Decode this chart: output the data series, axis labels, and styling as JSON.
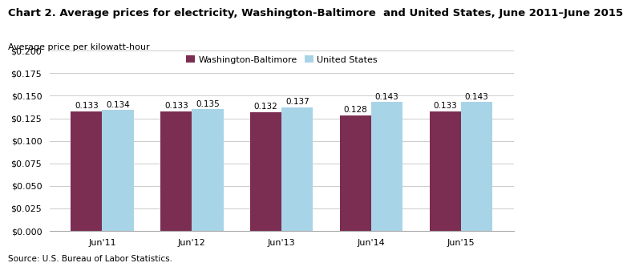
{
  "title": "Chart 2. Average prices for electricity, Washington-Baltimore  and United States, June 2011–June 2015",
  "ylabel": "Average price per kilowatt-hour",
  "source": "Source: U.S. Bureau of Labor Statistics.",
  "categories": [
    "Jun'11",
    "Jun'12",
    "Jun'13",
    "Jun'14",
    "Jun'15"
  ],
  "washington_baltimore": [
    0.133,
    0.133,
    0.132,
    0.128,
    0.133
  ],
  "united_states": [
    0.134,
    0.135,
    0.137,
    0.143,
    0.143
  ],
  "wb_color": "#7B2D52",
  "us_color": "#A8D4E8",
  "wb_label": "Washington-Baltimore",
  "us_label": "United States",
  "ylim": [
    0.0,
    0.2
  ],
  "yticks": [
    0.0,
    0.025,
    0.05,
    0.075,
    0.1,
    0.125,
    0.15,
    0.175,
    0.2
  ],
  "bar_width": 0.35,
  "title_fontsize": 9.5,
  "label_fontsize": 8,
  "tick_fontsize": 8,
  "annotation_fontsize": 7.5,
  "legend_fontsize": 8,
  "background_color": "#ffffff",
  "grid_color": "#cccccc"
}
